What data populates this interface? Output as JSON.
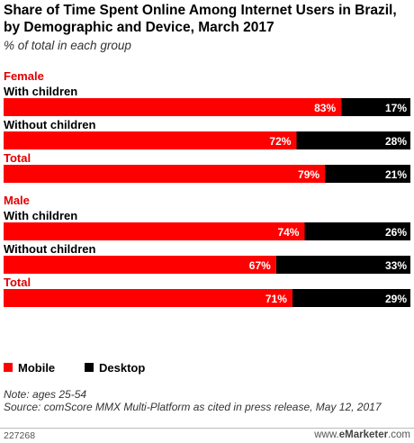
{
  "chart_data": {
    "type": "bar",
    "stacked": true,
    "orientation": "horizontal",
    "title": "Share of Time Spent Online Among Internet Users in Brazil, by Demographic and Device, March 2017",
    "subtitle": "% of total in each group",
    "unit": "%",
    "xlim": [
      0,
      100
    ],
    "groups": [
      {
        "name": "Female",
        "rows": [
          {
            "label": "With children",
            "mobile": 83,
            "desktop": 17
          },
          {
            "label": "Without children",
            "mobile": 72,
            "desktop": 28
          },
          {
            "label": "Total",
            "mobile": 79,
            "desktop": 21
          }
        ]
      },
      {
        "name": "Male",
        "rows": [
          {
            "label": "With children",
            "mobile": 74,
            "desktop": 26
          },
          {
            "label": "Without children",
            "mobile": 67,
            "desktop": 33
          },
          {
            "label": "Total",
            "mobile": 71,
            "desktop": 29
          }
        ]
      }
    ],
    "series": [
      {
        "name": "Mobile",
        "color": "#ff0000"
      },
      {
        "name": "Desktop",
        "color": "#000000"
      }
    ],
    "legend_position": "bottom-left"
  },
  "note": "Note: ages 25-54",
  "source": "Source: comScore MMX Multi-Platform as cited in press release, May 12, 2017",
  "footer": {
    "chart_id": "227268",
    "brand_prefix": "www.",
    "brand_name": "eMarketer",
    "brand_suffix": ".com"
  },
  "colors": {
    "group_label": "#e00000",
    "mobile": "#ff0000",
    "desktop": "#000000"
  }
}
